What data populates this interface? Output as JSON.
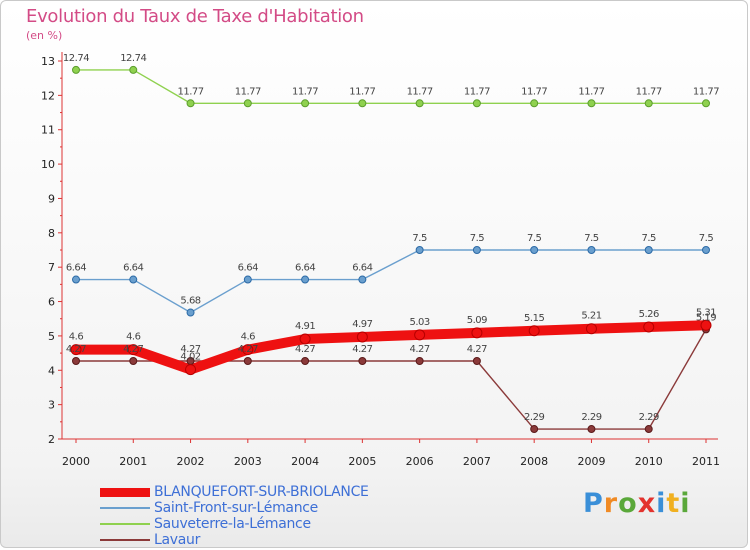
{
  "title": "Evolution du Taux de Taxe d'Habitation",
  "unit": "(en %)",
  "logo": {
    "letters": [
      "P",
      "r",
      "o",
      "x",
      "i",
      "t",
      "i"
    ],
    "colors": [
      "#3a8fd8",
      "#f08a24",
      "#5aa83a",
      "#e3332e",
      "#3a8fd8",
      "#f0b020",
      "#5aa83a"
    ]
  },
  "chart_data": {
    "type": "line",
    "x": [
      2000,
      2001,
      2002,
      2003,
      2004,
      2005,
      2006,
      2007,
      2008,
      2009,
      2010,
      2011
    ],
    "ylim": [
      2,
      13
    ],
    "yticks": [
      2,
      3,
      4,
      5,
      6,
      7,
      8,
      9,
      10,
      11,
      12,
      13
    ],
    "grid": false,
    "legend_position": "bottom-left",
    "series": [
      {
        "name": "Sauveterre-la-Lémance",
        "color": "#8fd14f",
        "values": [
          12.74,
          12.74,
          11.77,
          11.77,
          11.77,
          11.77,
          11.77,
          11.77,
          11.77,
          11.77,
          11.77,
          11.77
        ],
        "labels": [
          "12.74",
          "12.74",
          "11.77",
          "11.77",
          "11.77",
          "11.77",
          "11.77",
          "11.77",
          "11.77",
          "11.77",
          "11.77",
          "11.77"
        ]
      },
      {
        "name": "Saint-Front-sur-Lémance",
        "color": "#6a9fce",
        "values": [
          6.64,
          6.64,
          5.68,
          6.64,
          6.64,
          6.64,
          7.5,
          7.5,
          7.5,
          7.5,
          7.5,
          7.5
        ],
        "labels": [
          "6.64",
          "6.64",
          "5.68",
          "6.64",
          "6.64",
          "6.64",
          "7.5",
          "7.5",
          "7.5",
          "7.5",
          "7.5",
          "7.5"
        ]
      },
      {
        "name": "Lavaur",
        "color": "#8b3a3a",
        "values": [
          4.27,
          4.27,
          4.27,
          4.27,
          4.27,
          4.27,
          4.27,
          4.27,
          2.29,
          2.29,
          2.29,
          5.19
        ],
        "labels": [
          "4.27",
          "4.27",
          "4.27",
          "4.27",
          "4.27",
          "4.27",
          "4.27",
          "4.27",
          "2.29",
          "2.29",
          "2.29",
          "5.19"
        ]
      },
      {
        "name": "BLANQUEFORT-SUR-BRIOLANCE",
        "color": "#ee1111",
        "values": [
          4.6,
          4.6,
          4.02,
          4.6,
          4.91,
          4.97,
          5.03,
          5.09,
          5.15,
          5.21,
          5.26,
          5.31
        ],
        "labels": [
          "4.6",
          "4.6",
          "4.02",
          "4.6",
          "4.91",
          "4.97",
          "5.03",
          "5.09",
          "5.15",
          "5.21",
          "5.26",
          "5.31"
        ]
      }
    ],
    "legend": [
      "BLANQUEFORT-SUR-BRIOLANCE",
      "Saint-Front-sur-Lémance",
      "Sauveterre-la-Lémance",
      "Lavaur"
    ]
  }
}
